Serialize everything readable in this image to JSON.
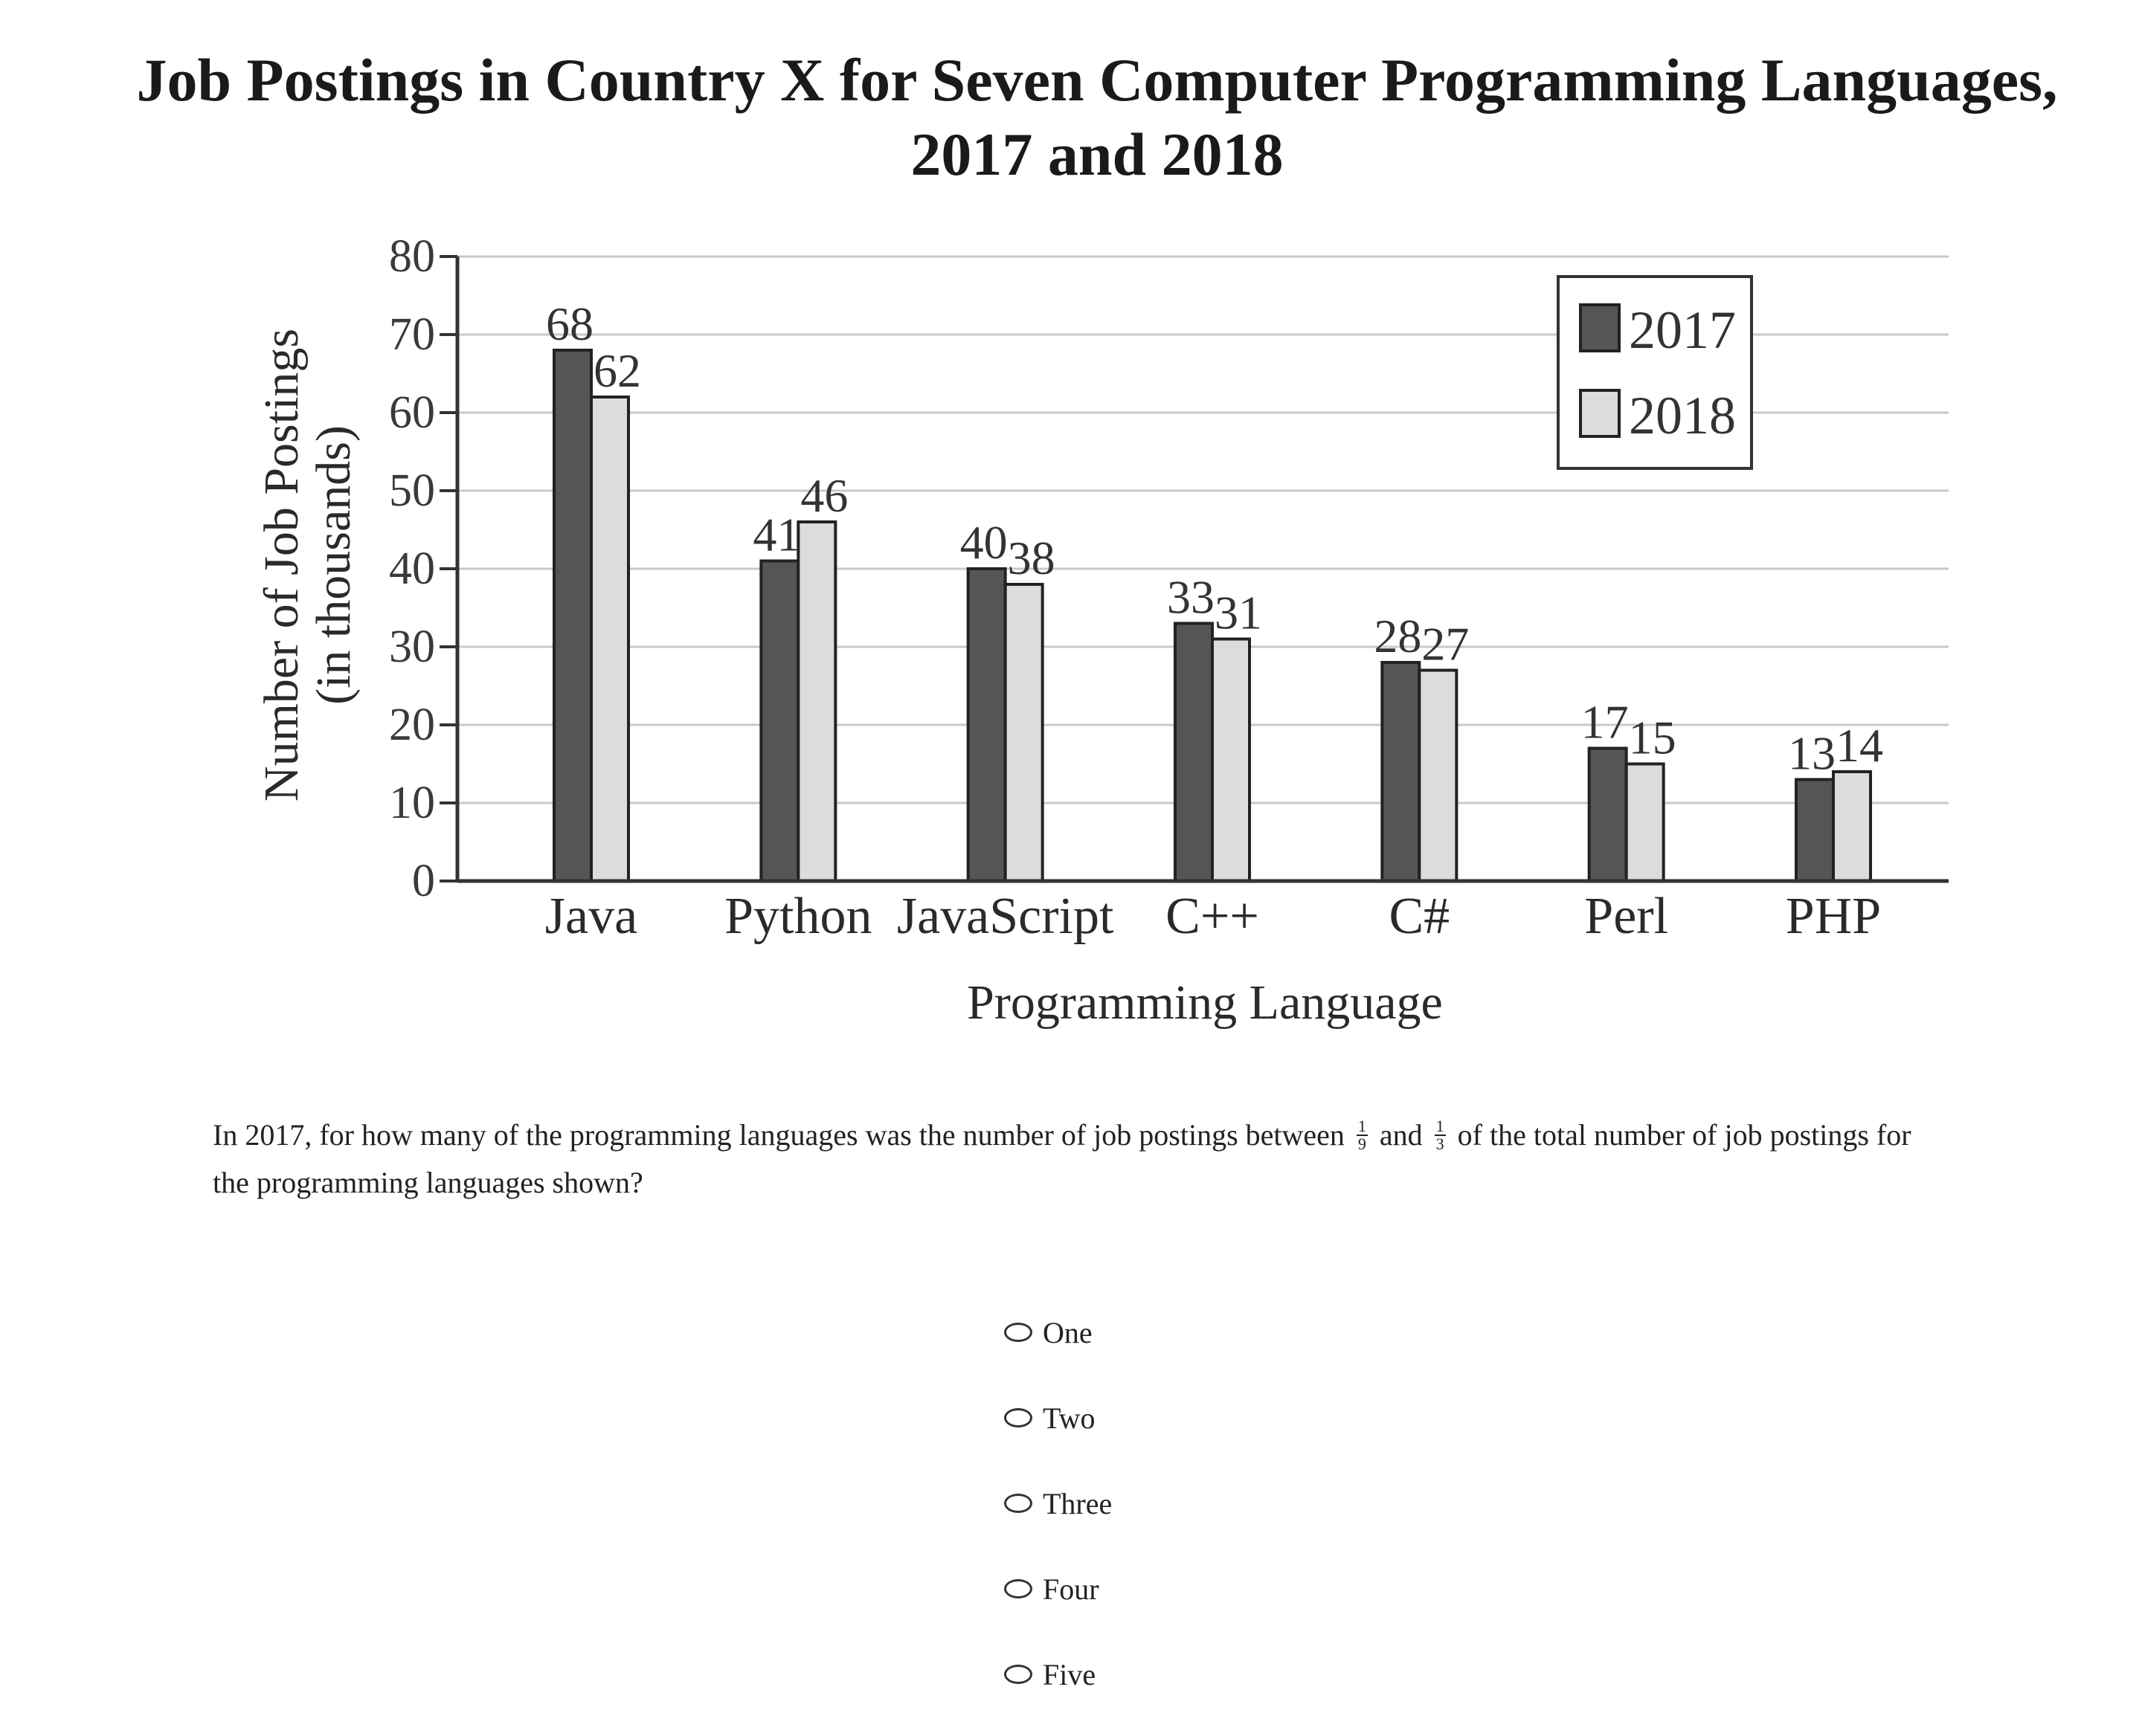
{
  "chart_data": {
    "type": "bar",
    "title_lines": [
      "Job Postings in Country X for Seven Computer Programming Languages,",
      "2017 and 2018"
    ],
    "ylabel_lines": [
      "Number of Job Postings",
      "(in thousands)"
    ],
    "xlabel": "Programming Language",
    "ylim": [
      0,
      80
    ],
    "yticks": [
      "0",
      "10",
      "20",
      "30",
      "40",
      "50",
      "60",
      "70",
      "80"
    ],
    "categories": [
      "Java",
      "Python",
      "JavaScript",
      "C++",
      "C#",
      "Perl",
      "PHP"
    ],
    "series": [
      {
        "name": "2017",
        "values": [
          68,
          41,
          40,
          33,
          28,
          17,
          13
        ],
        "color": "#555555"
      },
      {
        "name": "2018",
        "values": [
          62,
          46,
          38,
          31,
          27,
          15,
          14
        ],
        "color": "#dcdcdc"
      }
    ],
    "value_labels": {
      "2017": [
        "68",
        "41",
        "40",
        "33",
        "28",
        "17",
        "13"
      ],
      "2018": [
        "62",
        "46",
        "38",
        "31",
        "27",
        "15",
        "14"
      ]
    },
    "legend": [
      "2017",
      "2018"
    ],
    "legend_position": "top-right",
    "grid": true
  },
  "question": {
    "part1": "In 2017, for how many of the programming languages was the number of job postings between",
    "frac1": {
      "num": "1",
      "den": "9"
    },
    "and_word": "and",
    "frac2": {
      "num": "1",
      "den": "3"
    },
    "part2": "of the total number of job postings for the programming languages shown?"
  },
  "options": [
    "One",
    "Two",
    "Three",
    "Four",
    "Five"
  ]
}
